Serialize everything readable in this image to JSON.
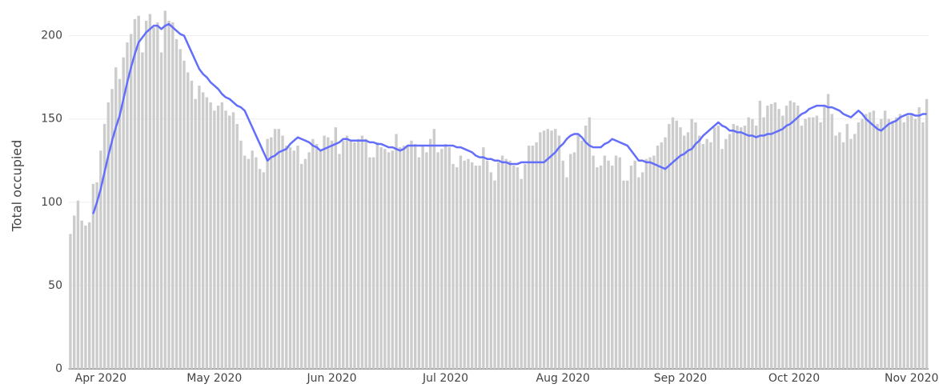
{
  "chart_data": {
    "type": "bar",
    "y_label": "Total occupied",
    "ylim": [
      0,
      220
    ],
    "yticks": [
      0,
      50,
      100,
      150,
      200
    ],
    "grid": true,
    "categories": [
      null,
      null,
      null,
      null,
      null,
      null,
      null,
      null,
      "Apr 2020",
      null,
      null,
      null,
      null,
      null,
      null,
      null,
      null,
      null,
      null,
      null,
      null,
      null,
      null,
      null,
      null,
      null,
      null,
      null,
      null,
      null,
      null,
      null,
      null,
      null,
      null,
      null,
      null,
      null,
      "May 2020",
      null,
      null,
      null,
      null,
      null,
      null,
      null,
      null,
      null,
      null,
      null,
      null,
      null,
      null,
      null,
      null,
      null,
      null,
      null,
      null,
      null,
      null,
      null,
      null,
      null,
      null,
      null,
      null,
      null,
      null,
      "Jun 2020",
      null,
      null,
      null,
      null,
      null,
      null,
      null,
      null,
      null,
      null,
      null,
      null,
      null,
      null,
      null,
      null,
      null,
      null,
      null,
      null,
      null,
      null,
      null,
      null,
      null,
      null,
      null,
      null,
      null,
      "Jul 2020",
      null,
      null,
      null,
      null,
      null,
      null,
      null,
      null,
      null,
      null,
      null,
      null,
      null,
      null,
      null,
      null,
      null,
      null,
      null,
      null,
      null,
      null,
      null,
      null,
      null,
      null,
      null,
      null,
      null,
      null,
      "Aug 2020",
      null,
      null,
      null,
      null,
      null,
      null,
      null,
      null,
      null,
      null,
      null,
      null,
      null,
      null,
      null,
      null,
      null,
      null,
      null,
      null,
      null,
      null,
      null,
      null,
      null,
      null,
      null,
      null,
      null,
      null,
      "Sep 2020",
      null,
      null,
      null,
      null,
      null,
      null,
      null,
      null,
      null,
      null,
      null,
      null,
      null,
      null,
      null,
      null,
      null,
      null,
      null,
      null,
      null,
      null,
      null,
      null,
      null,
      null,
      null,
      null,
      null,
      "Oct 2020",
      null,
      null,
      null,
      null,
      null,
      null,
      null,
      null,
      null,
      null,
      null,
      null,
      null,
      null,
      null,
      null,
      null,
      null,
      null,
      null,
      null,
      null,
      null,
      null,
      null,
      null,
      null,
      null,
      null,
      null,
      "Nov 2020",
      null,
      null,
      null,
      null
    ],
    "series": [
      {
        "type": "bar",
        "color": "#cccccc",
        "values": [
          81,
          92,
          101,
          89,
          86,
          88,
          111,
          112,
          131,
          147,
          160,
          168,
          181,
          174,
          187,
          196,
          201,
          210,
          212,
          190,
          209,
          213,
          205,
          208,
          190,
          215,
          209,
          208,
          198,
          192,
          185,
          178,
          173,
          162,
          170,
          166,
          163,
          160,
          155,
          158,
          160,
          155,
          152,
          154,
          147,
          137,
          128,
          126,
          131,
          127,
          120,
          118,
          138,
          139,
          144,
          144,
          140,
          134,
          133,
          131,
          134,
          123,
          126,
          130,
          138,
          135,
          131,
          140,
          139,
          137,
          145,
          129,
          137,
          140,
          137,
          136,
          138,
          140,
          138,
          127,
          127,
          136,
          133,
          132,
          130,
          131,
          141,
          133,
          134,
          134,
          137,
          135,
          127,
          134,
          130,
          138,
          144,
          130,
          132,
          135,
          133,
          123,
          121,
          128,
          125,
          126,
          124,
          122,
          122,
          133,
          125,
          118,
          113,
          124,
          128,
          126,
          125,
          122,
          121,
          114,
          123,
          134,
          134,
          136,
          142,
          143,
          144,
          143,
          144,
          140,
          125,
          115,
          129,
          130,
          141,
          137,
          146,
          151,
          128,
          121,
          122,
          128,
          125,
          122,
          128,
          127,
          113,
          113,
          122,
          125,
          115,
          118,
          126,
          127,
          128,
          134,
          136,
          139,
          147,
          151,
          149,
          145,
          140,
          142,
          150,
          148,
          140,
          135,
          138,
          136,
          145,
          146,
          132,
          138,
          141,
          147,
          146,
          145,
          146,
          151,
          150,
          146,
          161,
          151,
          158,
          159,
          160,
          156,
          152,
          158,
          161,
          160,
          158,
          146,
          150,
          151,
          151,
          152,
          148,
          158,
          165,
          153,
          140,
          142,
          136,
          147,
          138,
          141,
          148,
          150,
          153,
          154,
          155,
          147,
          150,
          155,
          150,
          149,
          151,
          153,
          148,
          152,
          153,
          150,
          157,
          148,
          162
        ]
      },
      {
        "type": "line",
        "color": "#636efa",
        "values": [
          null,
          null,
          null,
          null,
          null,
          null,
          93,
          100,
          108,
          118,
          128,
          137,
          145,
          152,
          162,
          172,
          181,
          189,
          196,
          199,
          202,
          204,
          206,
          206,
          204,
          206,
          207,
          205,
          203,
          201,
          200,
          195,
          190,
          185,
          180,
          177,
          175,
          172,
          170,
          168,
          165,
          163,
          162,
          160,
          158,
          157,
          155,
          150,
          145,
          140,
          135,
          130,
          125,
          127,
          128,
          130,
          131,
          132,
          135,
          137,
          139,
          138,
          137,
          136,
          134,
          133,
          131,
          132,
          133,
          134,
          135,
          136,
          138,
          138,
          137,
          137,
          137,
          137,
          137,
          136,
          136,
          135,
          135,
          134,
          133,
          133,
          132,
          131,
          132,
          134,
          134,
          134,
          134,
          134,
          134,
          134,
          134,
          134,
          134,
          134,
          134,
          134,
          133,
          133,
          132,
          131,
          130,
          128,
          127,
          127,
          126,
          126,
          125,
          125,
          124,
          124,
          123,
          123,
          123,
          124,
          124,
          124,
          124,
          124,
          124,
          124,
          126,
          128,
          130,
          133,
          135,
          138,
          140,
          141,
          141,
          139,
          136,
          134,
          133,
          133,
          133,
          135,
          136,
          138,
          137,
          136,
          135,
          134,
          131,
          128,
          125,
          125,
          124,
          124,
          123,
          122,
          121,
          120,
          122,
          124,
          126,
          128,
          129,
          131,
          132,
          135,
          137,
          140,
          142,
          144,
          146,
          148,
          146,
          145,
          143,
          143,
          142,
          142,
          141,
          140,
          140,
          139,
          140,
          140,
          141,
          141,
          142,
          143,
          144,
          146,
          147,
          149,
          151,
          153,
          154,
          156,
          157,
          158,
          158,
          158,
          157,
          157,
          156,
          155,
          153,
          152,
          151,
          153,
          155,
          153,
          150,
          148,
          146,
          144,
          143,
          145,
          147,
          148,
          149,
          151,
          152,
          153,
          153,
          152,
          152,
          153,
          153
        ]
      }
    ]
  }
}
